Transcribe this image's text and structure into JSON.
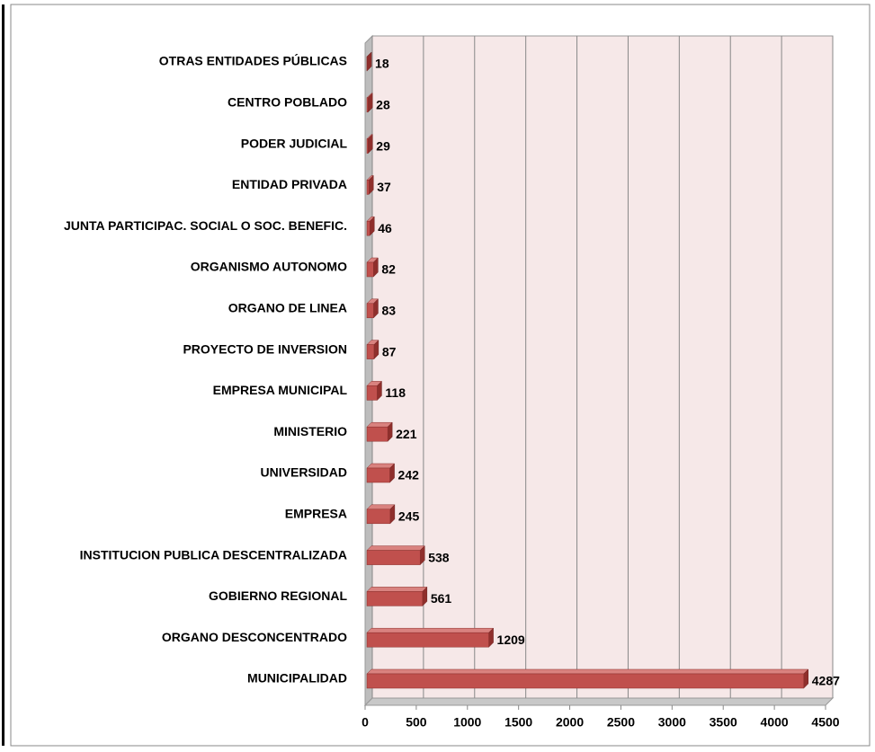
{
  "chart_data": {
    "type": "bar",
    "orientation": "horizontal",
    "categories": [
      "OTRAS ENTIDADES PÚBLICAS",
      "CENTRO POBLADO",
      "PODER JUDICIAL",
      "ENTIDAD PRIVADA",
      "JUNTA PARTICIPAC. SOCIAL O SOC. BENEFIC.",
      "ORGANISMO AUTONOMO",
      "ORGANO DE LINEA",
      "PROYECTO DE INVERSION",
      "EMPRESA MUNICIPAL",
      "MINISTERIO",
      "UNIVERSIDAD",
      "EMPRESA",
      "INSTITUCION PUBLICA DESCENTRALIZADA",
      "GOBIERNO REGIONAL",
      "ORGANO DESCONCENTRADO",
      "MUNICIPALIDAD"
    ],
    "values": [
      18,
      28,
      29,
      37,
      46,
      82,
      83,
      87,
      118,
      221,
      242,
      245,
      538,
      561,
      1209,
      4287
    ],
    "color": "#c0504d",
    "xlim": [
      0,
      4500
    ],
    "xticks": [
      0,
      500,
      1000,
      1500,
      2000,
      2500,
      3000,
      3500,
      4000,
      4500
    ],
    "grid": true
  }
}
